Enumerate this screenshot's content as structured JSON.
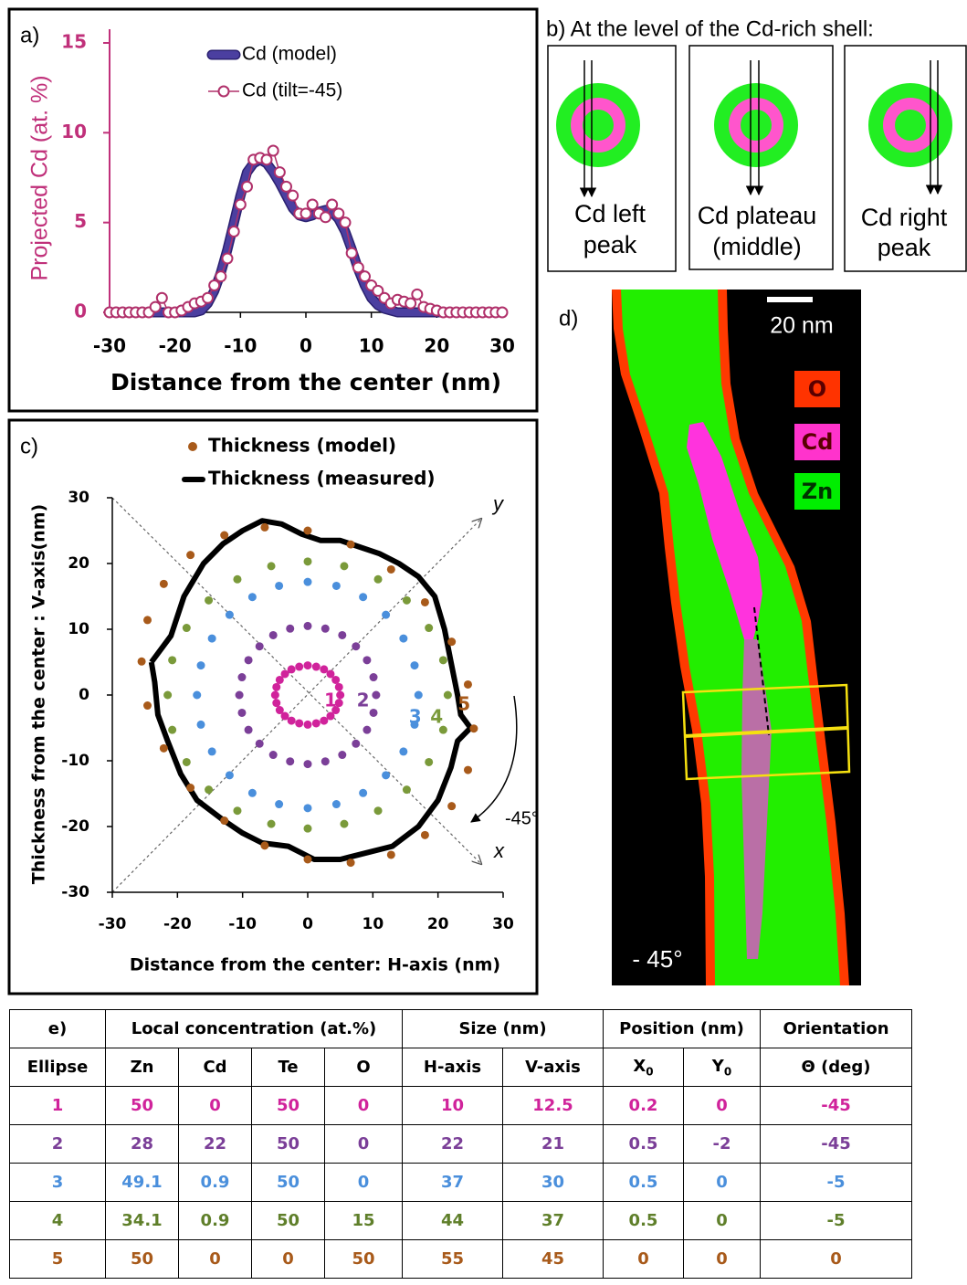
{
  "chart_data": [
    {
      "type": "line",
      "label": "a)",
      "xlabel": "Distance from the center (nm)",
      "ylabel": "Projected Cd (at. %)",
      "axis_color": "#c0307a",
      "xlim": [
        -30,
        30
      ],
      "ylim": [
        0,
        15
      ],
      "xticks": [
        -30,
        -20,
        -10,
        0,
        10,
        20,
        30
      ],
      "yticks": [
        0,
        5,
        10,
        15
      ],
      "x": [
        -30,
        -29,
        -28,
        -27,
        -26,
        -25,
        -24,
        -23,
        -22,
        -21,
        -20,
        -19,
        -18,
        -17,
        -16,
        -15,
        -14,
        -13,
        -12,
        -11,
        -10,
        -9,
        -8,
        -7,
        -6,
        -5,
        -4,
        -3,
        -2,
        -1,
        0,
        1,
        2,
        3,
        4,
        5,
        6,
        7,
        8,
        9,
        10,
        11,
        12,
        13,
        14,
        15,
        16,
        17,
        18,
        19,
        20,
        21,
        22,
        23,
        24,
        25,
        26,
        27,
        28,
        29,
        30
      ],
      "series": [
        {
          "name": "Cd (model)",
          "color": "#4b3fa0",
          "values": [
            0,
            0,
            0,
            0,
            0,
            0,
            0,
            0,
            0,
            0,
            0,
            0,
            0,
            0,
            0.1,
            0.5,
            1.2,
            2.2,
            3.5,
            5.0,
            6.5,
            7.8,
            8.3,
            8.5,
            8.3,
            7.8,
            7.2,
            6.5,
            5.8,
            5.4,
            5.3,
            5.4,
            5.6,
            5.7,
            5.6,
            5.2,
            4.5,
            3.5,
            2.4,
            1.5,
            0.8,
            0.4,
            0.2,
            0.1,
            0,
            0,
            0,
            0,
            0,
            0,
            0,
            0,
            0,
            0,
            0,
            0,
            0,
            0,
            0,
            0,
            0
          ]
        },
        {
          "name": "Cd (tilt=-45)",
          "color": "#b0306a",
          "marker": "circle",
          "values": [
            0,
            0,
            0,
            0,
            0,
            0,
            0,
            0.3,
            0.8,
            0,
            0,
            0.1,
            0.3,
            0.5,
            0.6,
            0.8,
            1.5,
            2.0,
            3.0,
            4.5,
            6.0,
            7.0,
            8.5,
            8.6,
            8.5,
            9.0,
            7.8,
            7.0,
            6.5,
            5.5,
            5.5,
            6.0,
            5.5,
            5.3,
            6.0,
            5.5,
            5.0,
            3.3,
            2.5,
            2.0,
            1.5,
            1.2,
            0.8,
            0.5,
            0.7,
            0.6,
            0.5,
            1.0,
            0.3,
            0.2,
            0.1,
            0,
            0,
            0,
            0,
            0,
            0,
            0,
            0,
            0,
            0
          ]
        }
      ]
    },
    {
      "type": "scatter",
      "label": "c)",
      "xlabel": "Distance from the center: H-axis (nm)",
      "ylabel": "Thickness from the center : V-axis(nm)",
      "xlim": [
        -30,
        30
      ],
      "ylim": [
        -30,
        30
      ],
      "xticks": [
        -30,
        -20,
        -10,
        0,
        10,
        20,
        30
      ],
      "yticks": [
        -30,
        -20,
        -10,
        0,
        10,
        20,
        30
      ],
      "model_label": "Thickness (model)",
      "annotations": [
        "y",
        "x",
        "-45°"
      ],
      "series": [
        {
          "name": "1",
          "color": "#d0239b",
          "x": [
            5,
            4.8,
            4.3,
            3.5,
            2.5,
            1.3,
            0,
            -1.3,
            -2.5,
            -3.5,
            -4.3,
            -4.8,
            -5,
            -4.8,
            -4.3,
            -3.5,
            -2.5,
            -1.3,
            0,
            1.3,
            2.5,
            3.5,
            4.3,
            4.8
          ],
          "values": [
            0,
            1.2,
            2.3,
            3.2,
            3.9,
            4.3,
            4.5,
            4.3,
            3.9,
            3.2,
            2.3,
            1.2,
            0,
            -1.2,
            -2.3,
            -3.2,
            -3.9,
            -4.3,
            -4.5,
            -4.3,
            -3.9,
            -3.2,
            -2.3,
            -1.2
          ]
        },
        {
          "name": "2",
          "color": "#7b3f98",
          "x": [
            10.5,
            10.1,
            9.1,
            7.4,
            5.3,
            2.7,
            0,
            -2.7,
            -5.3,
            -7.4,
            -9.1,
            -10.1,
            -10.5,
            -10.1,
            -9.1,
            -7.4,
            -5.3,
            -2.7,
            0,
            2.7,
            5.3,
            7.4,
            9.1,
            10.1
          ],
          "values": [
            0,
            2.7,
            5.3,
            7.4,
            9.1,
            10.1,
            10.5,
            10.1,
            9.1,
            7.4,
            5.3,
            2.7,
            0,
            -2.7,
            -5.3,
            -7.4,
            -9.1,
            -10.1,
            -10.5,
            -10.1,
            -9.1,
            -7.4,
            -5.3,
            -2.7
          ]
        },
        {
          "name": "3",
          "color": "#4a8fdc",
          "x": [
            17,
            16.4,
            14.7,
            12,
            8.5,
            4.4,
            0,
            -4.4,
            -8.5,
            -12,
            -14.7,
            -16.4,
            -17,
            -16.4,
            -14.7,
            -12,
            -8.5,
            -4.4,
            0,
            4.4,
            8.5,
            12,
            14.7,
            16.4
          ],
          "values": [
            0,
            4.5,
            8.6,
            12.2,
            14.9,
            16.6,
            17.2,
            16.6,
            14.9,
            12.2,
            8.6,
            4.5,
            0,
            -4.5,
            -8.6,
            -12.2,
            -14.9,
            -16.6,
            -17.2,
            -16.6,
            -14.9,
            -12.2,
            -8.6,
            -4.5
          ]
        },
        {
          "name": "4",
          "color": "#7a9a3a",
          "x": [
            21.5,
            20.8,
            18.6,
            15.2,
            10.8,
            5.6,
            0,
            -5.6,
            -10.8,
            -15.2,
            -18.6,
            -20.8,
            -21.5,
            -20.8,
            -18.6,
            -15.2,
            -10.8,
            -5.6,
            0,
            5.6,
            10.8,
            15.2,
            18.6,
            20.8
          ],
          "values": [
            0,
            5.3,
            10.2,
            14.4,
            17.6,
            19.6,
            20.3,
            19.6,
            17.6,
            14.4,
            10.2,
            5.3,
            0,
            -5.3,
            -10.2,
            -14.4,
            -17.6,
            -19.6,
            -20.3,
            -19.6,
            -17.6,
            -14.4,
            -10.2,
            -5.3
          ]
        },
        {
          "name": "5",
          "color": "#a85a1a",
          "x": [
            25.5,
            24.6,
            22.1,
            18,
            12.8,
            6.6,
            0,
            -6.6,
            -12.8,
            -18,
            -22.1,
            -24.6,
            -25.5,
            -24.6,
            -22.1,
            -18,
            -12.8,
            -6.6,
            0,
            6.6,
            12.8,
            18,
            22.1,
            24.6
          ],
          "values": [
            -5.1,
            1.6,
            8.1,
            14.1,
            19.1,
            22.9,
            25,
            25.5,
            24.3,
            21.3,
            16.9,
            11.4,
            5.1,
            -1.6,
            -8.1,
            -14.1,
            -19.1,
            -22.9,
            -25,
            -25.5,
            -24.3,
            -21.3,
            -16.9,
            -11.4
          ]
        },
        {
          "name": "Thickness (measured)",
          "type": "line",
          "color": "#000000",
          "x": [
            -24,
            -21,
            -19,
            -16,
            -13,
            -10,
            -7,
            -4,
            -1,
            2,
            5,
            8,
            11,
            14,
            17,
            19.5,
            21,
            22,
            23,
            23.5,
            25,
            23,
            22,
            20,
            17,
            13,
            9,
            5,
            1,
            -3,
            -7,
            -10,
            -13,
            -17,
            -19.5,
            -21.5,
            -23,
            -23.5,
            -24
          ],
          "values": [
            5,
            9,
            15,
            20,
            23,
            25,
            26.5,
            26,
            24.5,
            23.5,
            23.5,
            22.5,
            21.5,
            20,
            18,
            15,
            10,
            5,
            0,
            -3,
            -5,
            -7,
            -11,
            -16,
            -20,
            -23,
            -24,
            -25,
            -25,
            -23,
            -22.5,
            -21,
            -19,
            -16,
            -12,
            -7,
            -3,
            2,
            5
          ]
        }
      ]
    }
  ],
  "panel_b": {
    "title": "b) At the level of the Cd-rich shell:",
    "panels": [
      [
        "Cd left",
        "peak"
      ],
      [
        "Cd plateau",
        "(middle)"
      ],
      [
        "Cd right",
        "peak"
      ]
    ]
  },
  "panel_d": {
    "label": "d)",
    "scale_bar": "20 nm",
    "legend": [
      "O",
      "Cd",
      "Zn"
    ],
    "angle": "- 45°"
  },
  "table": {
    "label": "e)",
    "groups": [
      "Local concentration (at.%)",
      "Size (nm)",
      "Position (nm)",
      "Orientation"
    ],
    "columns": [
      "Ellipse",
      "Zn",
      "Cd",
      "Te",
      "O",
      "H-axis",
      "V-axis",
      {
        "text": "X",
        "sub": "0"
      },
      {
        "text": "Y",
        "sub": "0"
      },
      "Θ (deg)"
    ],
    "rows": [
      [
        1,
        50,
        0,
        50,
        0,
        10,
        12.5,
        0.2,
        0,
        -45
      ],
      [
        2,
        28,
        22,
        50,
        0,
        22,
        21,
        0.5,
        -2,
        -45
      ],
      [
        3,
        49.1,
        0.9,
        50,
        0,
        37,
        30,
        0.5,
        0,
        -5
      ],
      [
        4,
        34.1,
        0.9,
        50,
        15,
        44,
        37,
        0.5,
        0,
        -5
      ],
      [
        5,
        50,
        0,
        0,
        50,
        55,
        45,
        0,
        0,
        0
      ]
    ],
    "row_colors": [
      "#d0239b",
      "#7b3f98",
      "#4a8fdc",
      "#5f7f2a",
      "#a85a1a"
    ]
  }
}
